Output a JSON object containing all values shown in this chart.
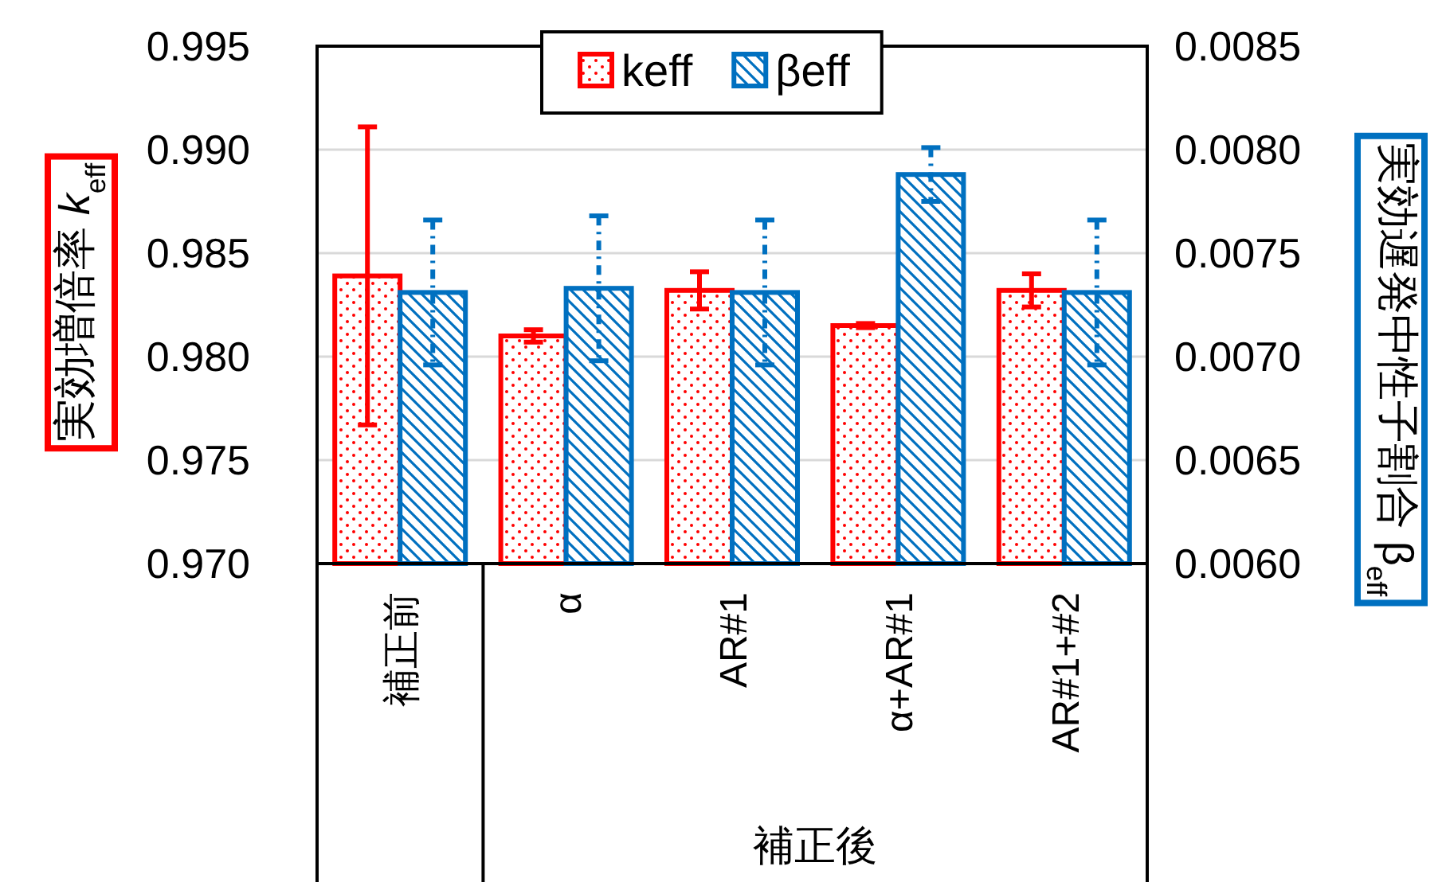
{
  "chart_data": {
    "type": "bar",
    "categories": [
      "補正前",
      "α",
      "AR#1",
      "α+AR#1",
      "AR#1+#2"
    ],
    "series": [
      {
        "name": "keff",
        "color": "#ff0000",
        "values": [
          0.9839,
          0.981,
          0.9832,
          0.9815,
          0.9832
        ],
        "errors": [
          0.0072,
          0.0003,
          0.0009,
          0.0001,
          0.0008
        ]
      },
      {
        "name": "βeff",
        "color": "#0070c0",
        "axis": "y2",
        "values": [
          0.00731,
          0.00733,
          0.00731,
          0.00788,
          0.00731
        ],
        "errors": [
          0.00035,
          0.00035,
          0.00035,
          0.00013,
          0.00035
        ]
      }
    ],
    "ylabel": "実効増倍率 *k*$_{eff}$",
    "y2label": "実効遅発中性子割合 β$_{eff}$",
    "ylim": [
      0.97,
      0.995
    ],
    "yticks": [
      {
        "value": 0.97,
        "label": "0.970"
      },
      {
        "value": 0.975,
        "label": "0.975"
      },
      {
        "value": 0.98,
        "label": "0.980"
      },
      {
        "value": 0.985,
        "label": "0.985"
      },
      {
        "value": 0.99,
        "label": "0.990"
      },
      {
        "value": 0.995,
        "label": "0.995"
      }
    ],
    "y2lim": [
      0.006,
      0.0085
    ],
    "y2ticks": [
      {
        "value": 0.006,
        "label": "0.0060"
      },
      {
        "value": 0.0065,
        "label": "0.0065"
      },
      {
        "value": 0.007,
        "label": "0.0070"
      },
      {
        "value": 0.0075,
        "label": "0.0075"
      },
      {
        "value": 0.008,
        "label": "0.0080"
      },
      {
        "value": 0.0085,
        "label": "0.0085"
      }
    ],
    "grid": "y",
    "legend": "top",
    "annotations": [
      "補正後"
    ]
  }
}
